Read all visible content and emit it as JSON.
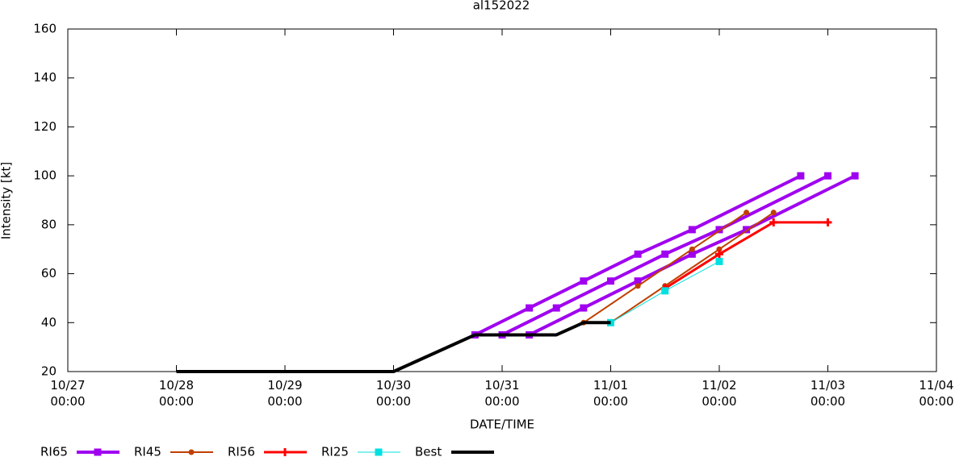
{
  "chart_data": {
    "type": "line",
    "title": "al152022",
    "x_label": "DATE/TIME",
    "y_label": "Intensity [kt]",
    "xlim": [
      "10/27 00:00",
      "11/04 00:00"
    ],
    "xticks": [
      "10/27 00:00",
      "10/28 00:00",
      "10/29 00:00",
      "10/30 00:00",
      "10/31 00:00",
      "11/01 00:00",
      "11/02 00:00",
      "11/03 00:00",
      "11/04 00:00"
    ],
    "ylim": [
      20,
      160
    ],
    "yticks": [
      20,
      40,
      60,
      80,
      100,
      120,
      140,
      160
    ],
    "legend": "bottom",
    "series": [
      {
        "name": "RI65",
        "color": "#a000f0",
        "marker": "square",
        "x": [
          "10/30 18:00",
          "10/31 06:00",
          "10/31 18:00",
          "11/01 06:00",
          "11/01 18:00",
          "11/02 18:00",
          null,
          "10/31 00:00",
          "10/31 12:00",
          "11/01 00:00",
          "11/01 12:00",
          "11/02 00:00",
          "11/03 00:00",
          null,
          "10/31 06:00",
          "10/31 18:00",
          "11/01 06:00",
          "11/01 18:00",
          "11/02 06:00",
          "11/03 06:00"
        ],
        "values": [
          35,
          46,
          57,
          68,
          78,
          100,
          null,
          35,
          46,
          57,
          68,
          78,
          100,
          null,
          35,
          46,
          57,
          68,
          78,
          100
        ]
      },
      {
        "name": "RI45",
        "color": "#c04000",
        "marker": "circle",
        "x": [
          "10/31 18:00",
          "11/01 06:00",
          "11/01 18:00",
          "11/02 06:00",
          null,
          "11/01 00:00",
          "11/01 12:00",
          "11/02 00:00",
          "11/02 12:00"
        ],
        "values": [
          40,
          55,
          70,
          85,
          null,
          40,
          55,
          70,
          85
        ]
      },
      {
        "name": "RI56",
        "color": "#ff0000",
        "marker": "plus",
        "x": [
          "11/01 12:00",
          "11/02 00:00",
          "11/02 12:00",
          "11/03 00:00"
        ],
        "values": [
          54,
          68,
          81,
          81
        ]
      },
      {
        "name": "RI25",
        "color": "#00e0e0",
        "marker": "square",
        "x": [
          "11/01 00:00",
          "11/01 12:00",
          "11/02 00:00"
        ],
        "values": [
          40,
          53,
          65
        ]
      },
      {
        "name": "Best",
        "color": "#000000",
        "marker": "none",
        "x": [
          "10/28 00:00",
          "10/30 00:00",
          "10/30 18:00",
          "10/31 12:00",
          "10/31 18:00",
          "11/01 00:00"
        ],
        "values": [
          20,
          20,
          35,
          35,
          40,
          40
        ]
      }
    ]
  }
}
